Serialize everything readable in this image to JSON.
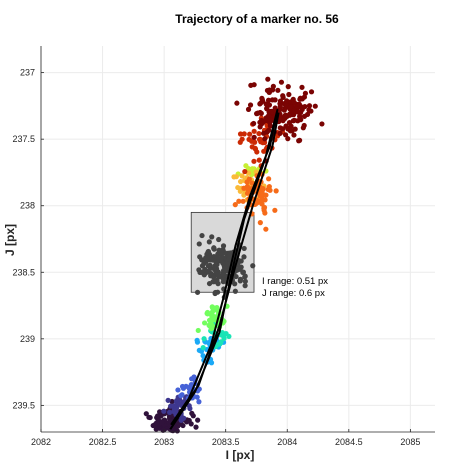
{
  "chart_data": {
    "type": "scatter",
    "title": "Trajectory of a marker no. 56",
    "xlabel": "I [px]",
    "ylabel": "J [px]",
    "xlim": [
      2082,
      2085.2
    ],
    "ylim": [
      239.7,
      236.8
    ],
    "y_reversed": true,
    "xticks": [
      "2082",
      "2082.5",
      "2083",
      "2083.5",
      "2084",
      "2084.5",
      "2085"
    ],
    "xtick_values": [
      2082,
      2082.5,
      2083,
      2083.5,
      2084,
      2084.5,
      2085
    ],
    "yticks": [
      "237",
      "237.5",
      "238",
      "238.5",
      "239",
      "239.5"
    ],
    "ytick_values": [
      237,
      237.5,
      238,
      238.5,
      239,
      239.5
    ],
    "grid": true,
    "colormap": "turbo (point color encodes time: dark purple → blue → green → yellow → orange → dark red)",
    "colors": {
      "trajectory_line": "#000000",
      "highlighted_points": "#444444",
      "range_box_fill": "#d9d9d9",
      "range_box_edge": "#333333"
    },
    "clusters": [
      {
        "color": "#30123b",
        "cx": 2083.06,
        "cy": 239.62,
        "sx": 0.07,
        "sy": 0.05,
        "n": 120
      },
      {
        "color": "#3e378f",
        "cx": 2083.12,
        "cy": 239.52,
        "sx": 0.05,
        "sy": 0.05,
        "n": 35
      },
      {
        "color": "#4662d7",
        "cx": 2083.22,
        "cy": 239.38,
        "sx": 0.05,
        "sy": 0.05,
        "n": 30
      },
      {
        "color": "#1ba9f6",
        "cx": 2083.38,
        "cy": 239.08,
        "sx": 0.05,
        "sy": 0.05,
        "n": 25
      },
      {
        "color": "#1ae4b6",
        "cx": 2083.42,
        "cy": 238.96,
        "sx": 0.05,
        "sy": 0.05,
        "n": 25
      },
      {
        "color": "#72fe5e",
        "cx": 2083.4,
        "cy": 238.84,
        "sx": 0.05,
        "sy": 0.05,
        "n": 45
      },
      {
        "color": "#c7ef34",
        "cx": 2083.72,
        "cy": 237.76,
        "sx": 0.05,
        "sy": 0.05,
        "n": 20
      },
      {
        "color": "#faba39",
        "cx": 2083.7,
        "cy": 237.84,
        "sx": 0.06,
        "sy": 0.06,
        "n": 35
      },
      {
        "color": "#f66b19",
        "cx": 2083.76,
        "cy": 237.92,
        "sx": 0.07,
        "sy": 0.08,
        "n": 60
      },
      {
        "color": "#cb2a04",
        "cx": 2083.82,
        "cy": 237.48,
        "sx": 0.1,
        "sy": 0.09,
        "n": 40
      },
      {
        "color": "#7a0403",
        "cx": 2083.96,
        "cy": 237.3,
        "sx": 0.13,
        "sy": 0.1,
        "n": 170
      }
    ],
    "highlighted_cluster": {
      "color": "#444444",
      "cx": 2083.48,
      "cy": 238.46,
      "sx": 0.09,
      "sy": 0.09,
      "n": 190
    },
    "trajectory": [
      [
        2083.05,
        239.68
      ],
      [
        2083.25,
        239.4
      ],
      [
        2083.45,
        238.95
      ],
      [
        2083.55,
        238.5
      ],
      [
        2083.65,
        238.1
      ],
      [
        2083.82,
        237.65
      ],
      [
        2083.92,
        237.28
      ],
      [
        2083.86,
        237.55
      ],
      [
        2083.7,
        237.92
      ],
      [
        2083.58,
        238.3
      ],
      [
        2083.48,
        238.7
      ],
      [
        2083.38,
        239.05
      ],
      [
        2083.2,
        239.45
      ],
      [
        2083.06,
        239.64
      ],
      [
        2083.28,
        239.35
      ],
      [
        2083.45,
        238.9
      ],
      [
        2083.58,
        238.45
      ],
      [
        2083.72,
        238.0
      ],
      [
        2083.88,
        237.55
      ],
      [
        2083.93,
        237.3
      ]
    ],
    "range_box": {
      "x0": 2083.22,
      "x1": 2083.73,
      "y0": 238.05,
      "y1": 238.65
    },
    "annotations": [
      "I range: 0.51 px",
      "J range: 0.6 px"
    ]
  }
}
